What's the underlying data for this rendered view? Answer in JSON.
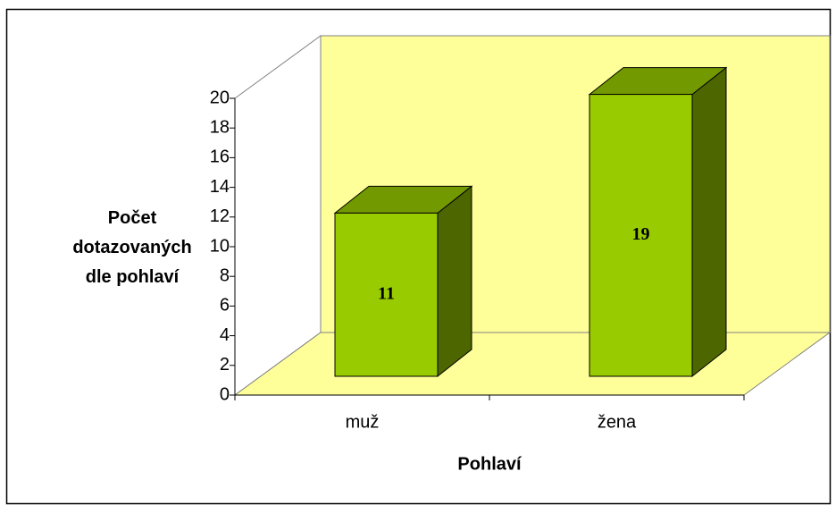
{
  "chart_data": {
    "type": "bar3d",
    "categories": [
      "muž",
      "žena"
    ],
    "values": [
      11,
      19
    ],
    "x_label": "Pohlaví",
    "y_label": "Počet dotazovaných dle pohlaví",
    "color": "#99cc00",
    "wall_color": "#ffff99",
    "ylim": [
      0,
      20
    ],
    "yticks": [
      0,
      2,
      4,
      6,
      8,
      10,
      12,
      14,
      16,
      18,
      20
    ],
    "grid": false,
    "data_labels": true
  }
}
